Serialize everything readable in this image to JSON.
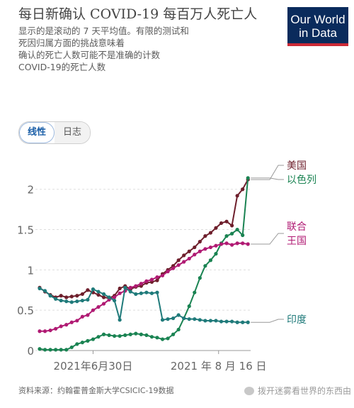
{
  "header": {
    "title": "每日新确认 COVID-19 每百万人死亡人",
    "subtitle_lines": [
      "显示的是滚动的 7 天平均值。有限的测试和",
      "死因归属方面的挑战意味着",
      "确认的死亡人数可能不是准确的计数",
      "COVID-19的死亡人数"
    ]
  },
  "logo": {
    "line1": "Our World",
    "line2": "in Data"
  },
  "tabs": {
    "linear": "线性",
    "log": "日志"
  },
  "footer": {
    "source": "资料来源：约翰霍普金斯大学CSICIC-19数据"
  },
  "watermark": {
    "text": "拨开迷雾看世界的东西由"
  },
  "colors": {
    "us": "#6e1f2c",
    "israel": "#1a8352",
    "uk": "#b01a73",
    "india": "#1f7a7a",
    "grid": "#dddddd",
    "tick_text": "#666666"
  },
  "chart_data": {
    "type": "line",
    "title": "",
    "xlabel": "",
    "ylabel": "",
    "xlim": [
      "2021-06-10",
      "2021-08-28"
    ],
    "ylim": [
      0,
      2.2
    ],
    "yticks": [
      0,
      0.5,
      1,
      1.5,
      2
    ],
    "ytick_labels": [
      "0",
      "0.5",
      "1",
      "1.5",
      "2"
    ],
    "xticks": [
      "2021-06-30",
      "2021-08-16"
    ],
    "xtick_labels": [
      "2021年6月30日",
      "2021 年 8 月 16 日"
    ],
    "grid": "horizontal dashed",
    "legend": "line-end labels, right",
    "x": [
      "2021-06-10",
      "2021-06-12",
      "2021-06-14",
      "2021-06-16",
      "2021-06-18",
      "2021-06-20",
      "2021-06-22",
      "2021-06-24",
      "2021-06-26",
      "2021-06-28",
      "2021-06-30",
      "2021-07-02",
      "2021-07-04",
      "2021-07-06",
      "2021-07-08",
      "2021-07-10",
      "2021-07-12",
      "2021-07-14",
      "2021-07-16",
      "2021-07-18",
      "2021-07-20",
      "2021-07-22",
      "2021-07-24",
      "2021-07-26",
      "2021-07-28",
      "2021-07-30",
      "2021-08-01",
      "2021-08-03",
      "2021-08-05",
      "2021-08-07",
      "2021-08-09",
      "2021-08-11",
      "2021-08-13",
      "2021-08-15",
      "2021-08-17",
      "2021-08-19",
      "2021-08-21",
      "2021-08-23",
      "2021-08-25",
      "2021-08-27"
    ],
    "series": [
      {
        "name": "美国",
        "color_key": "us",
        "values": [
          0.78,
          0.73,
          0.69,
          0.66,
          0.68,
          0.66,
          0.67,
          0.68,
          0.7,
          0.75,
          0.72,
          0.69,
          0.66,
          0.65,
          0.68,
          0.77,
          0.8,
          0.76,
          0.79,
          0.8,
          0.84,
          0.85,
          0.87,
          0.95,
          1.0,
          1.05,
          1.12,
          1.18,
          1.23,
          1.28,
          1.35,
          1.42,
          1.46,
          1.52,
          1.58,
          1.6,
          1.55,
          1.92,
          2.0,
          2.12
        ]
      },
      {
        "name": "以色列",
        "color_key": "israel",
        "values": [
          0.02,
          0.01,
          0.01,
          0.01,
          0.01,
          0.01,
          0.04,
          0.08,
          0.1,
          0.12,
          0.14,
          0.17,
          0.2,
          0.19,
          0.18,
          0.18,
          0.19,
          0.2,
          0.21,
          0.2,
          0.19,
          0.17,
          0.16,
          0.14,
          0.15,
          0.2,
          0.26,
          0.4,
          0.55,
          0.72,
          0.9,
          1.05,
          1.12,
          1.2,
          1.33,
          1.42,
          1.45,
          1.5,
          1.43,
          2.14
        ]
      },
      {
        "name": "联合王国",
        "color_key": "uk",
        "values": [
          0.24,
          0.24,
          0.25,
          0.27,
          0.3,
          0.32,
          0.35,
          0.37,
          0.42,
          0.44,
          0.5,
          0.54,
          0.58,
          0.63,
          0.66,
          0.71,
          0.74,
          0.78,
          0.8,
          0.83,
          0.86,
          0.88,
          0.91,
          0.93,
          0.98,
          1.02,
          1.06,
          1.1,
          1.14,
          1.19,
          1.23,
          1.26,
          1.28,
          1.3,
          1.32,
          1.33,
          1.31,
          1.33,
          1.33,
          1.32
        ]
      },
      {
        "name": "印度",
        "color_key": "india",
        "values": [
          0.77,
          0.74,
          0.68,
          0.64,
          0.62,
          0.61,
          0.6,
          0.61,
          0.62,
          0.63,
          0.76,
          0.73,
          0.7,
          0.66,
          0.62,
          0.38,
          0.78,
          0.73,
          0.7,
          0.71,
          0.72,
          0.71,
          0.72,
          0.38,
          0.39,
          0.4,
          0.44,
          0.4,
          0.39,
          0.39,
          0.38,
          0.37,
          0.37,
          0.37,
          0.36,
          0.36,
          0.36,
          0.35,
          0.35,
          0.35
        ]
      }
    ]
  }
}
